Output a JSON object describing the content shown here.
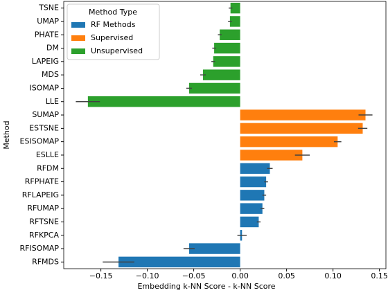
{
  "chart_data": {
    "type": "hbar",
    "xlabel": "Embedding k-NN Score - k-NN Score",
    "ylabel": "Method",
    "legend_title": "Method Type",
    "legend": "upper left",
    "categories": [
      "TSNE",
      "UMAP",
      "PHATE",
      "DM",
      "LAPEIG",
      "MDS",
      "ISOMAP",
      "LLE",
      "SUMAP",
      "ESTSNE",
      "ESISOMAP",
      "ESLLE",
      "RFDM",
      "RFPHATE",
      "RFLAPEIG",
      "RFUMAP",
      "RFTSNE",
      "RFKPCA",
      "RFISOMAP",
      "RFMDS"
    ],
    "series": [
      {
        "name": "RF Methods",
        "color": "#1f77b4",
        "values": [
          null,
          null,
          null,
          null,
          null,
          null,
          null,
          null,
          null,
          null,
          null,
          null,
          0.032,
          0.028,
          0.026,
          0.024,
          0.02,
          0.002,
          -0.055,
          -0.131
        ],
        "errors": [
          null,
          null,
          null,
          null,
          null,
          null,
          null,
          null,
          null,
          null,
          null,
          null,
          0.003,
          0.002,
          0.002,
          0.002,
          0.002,
          0.005,
          0.006,
          0.017
        ]
      },
      {
        "name": "Supervised",
        "color": "#ff7f0e",
        "values": [
          null,
          null,
          null,
          null,
          null,
          null,
          null,
          null,
          0.135,
          0.132,
          0.105,
          0.067,
          null,
          null,
          null,
          null,
          null,
          null,
          null,
          null
        ],
        "errors": [
          null,
          null,
          null,
          null,
          null,
          null,
          null,
          null,
          0.0075,
          0.005,
          0.004,
          0.008,
          null,
          null,
          null,
          null,
          null,
          null,
          null,
          null
        ]
      },
      {
        "name": "Unsupervised",
        "color": "#2ca02c",
        "values": [
          -0.0104,
          -0.011,
          -0.022,
          -0.028,
          -0.029,
          -0.04,
          -0.055,
          -0.164,
          null,
          null,
          null,
          null,
          null,
          null,
          null,
          null,
          null,
          null,
          null,
          null
        ],
        "errors": [
          0.002,
          0.002,
          0.002,
          0.002,
          0.002,
          0.003,
          0.003,
          0.013,
          null,
          null,
          null,
          null,
          null,
          null,
          null,
          null,
          null,
          null,
          null,
          null
        ]
      }
    ],
    "xlim": [
      -0.19,
      0.157
    ],
    "xticks": [
      {
        "value": -0.15,
        "label": "−0.15"
      },
      {
        "value": -0.1,
        "label": "−0.10"
      },
      {
        "value": -0.05,
        "label": "−0.05"
      },
      {
        "value": 0,
        "label": "0.00"
      },
      {
        "value": 0.05,
        "label": "0.05"
      },
      {
        "value": 0.1,
        "label": "0.10"
      },
      {
        "value": 0.15,
        "label": "0.15"
      }
    ]
  }
}
